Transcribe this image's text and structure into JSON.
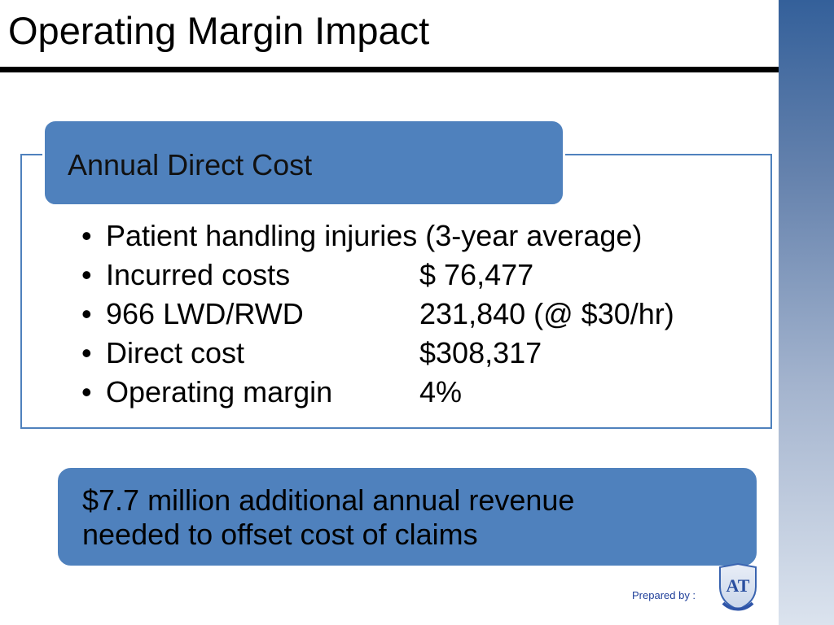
{
  "slide": {
    "title": "Operating Margin Impact",
    "header": "Annual Direct Cost",
    "bullets": [
      {
        "text": "Patient handling injuries (3-year average)",
        "value": ""
      },
      {
        "text": "Incurred costs",
        "value": "$ 76,477"
      },
      {
        "text": "966 LWD/RWD",
        "value": "231,840 (@ $30/hr)"
      },
      {
        "text": "Direct cost",
        "value": "$308,317"
      },
      {
        "text": "Operating margin",
        "value": "4%"
      }
    ],
    "bullet_glyph": "•",
    "callout_line1": "$7.7 million additional annual revenue",
    "callout_line2": "needed to offset cost of claims",
    "footer": "Prepared by :",
    "logo_text": "AT"
  },
  "colors": {
    "accent": "#4f81bd",
    "side_band_top": "#34609a",
    "side_band_bottom": "#dbe3ee"
  },
  "icons": {
    "logo": "shield-logo-icon"
  }
}
